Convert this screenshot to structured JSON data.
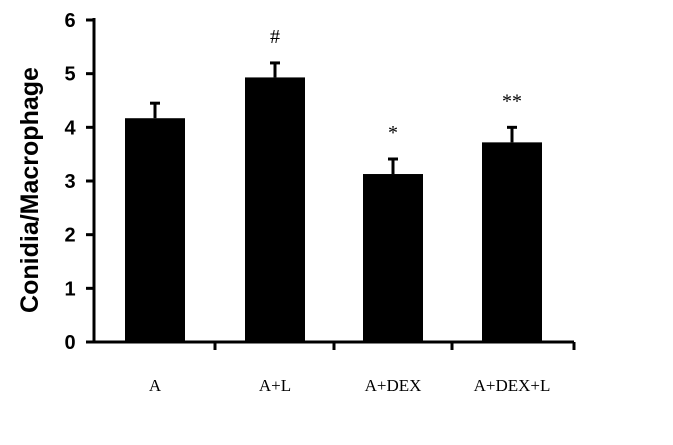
{
  "chart_data": {
    "type": "bar",
    "title": "",
    "xlabel": "",
    "ylabel": "Conidia/Macrophage",
    "ylim": [
      0,
      6
    ],
    "yticks": [
      0,
      1,
      2,
      3,
      4,
      5,
      6
    ],
    "categories": [
      "A",
      "A+L",
      "A+DEX",
      "A+DEX+L"
    ],
    "values": [
      4.17,
      4.93,
      3.13,
      3.72
    ],
    "errors": [
      0.28,
      0.27,
      0.28,
      0.28
    ],
    "annotations": [
      "",
      "#",
      "*",
      "**"
    ],
    "bar_color": "#000000",
    "grid": false,
    "legend": "none"
  }
}
